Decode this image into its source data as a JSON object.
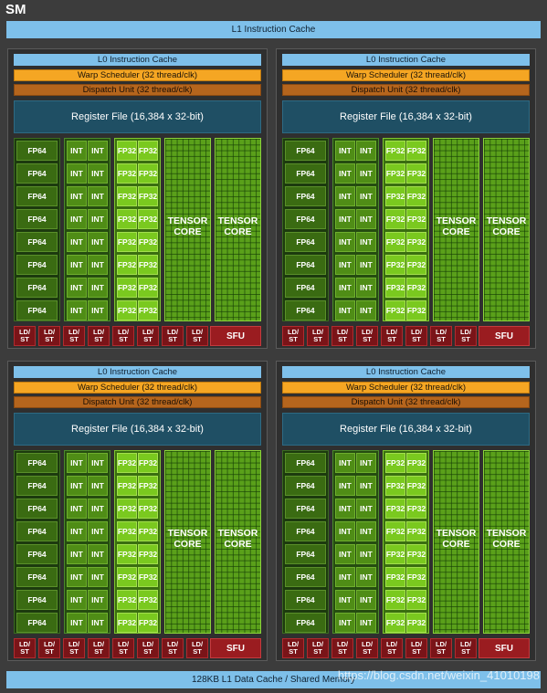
{
  "sm": {
    "title": "SM",
    "l1_instruction_cache": "L1 Instruction Cache",
    "l1_data_cache": "128KB L1 Data Cache / Shared Memory"
  },
  "quadrant": {
    "l0_cache": "L0 Instruction Cache",
    "warp_scheduler": "Warp Scheduler (32 thread/clk)",
    "dispatch_unit": "Dispatch Unit (32 thread/clk)",
    "register_file": "Register File (16,384 x 32-bit)",
    "fp64": "FP64",
    "int": "INT",
    "fp32": "FP32",
    "tensor_line1": "TENSOR",
    "tensor_line2": "CORE",
    "ldst_line1": "LD/",
    "ldst_line2": "ST",
    "sfu": "SFU"
  },
  "watermark": "https://blog.csdn.net/weixin_41010198",
  "colors": {
    "background": "#3c3c3c",
    "cache": "#7ec0ea",
    "warp": "#f5a623",
    "dispatch": "#b5651d",
    "register": "#1f4f64",
    "fp64": "#3a6b12",
    "int": "#4f8d16",
    "fp32": "#7ac91f",
    "tensor": "#5aa01a",
    "ldst": "#7a1418",
    "sfu": "#9a1c20"
  }
}
